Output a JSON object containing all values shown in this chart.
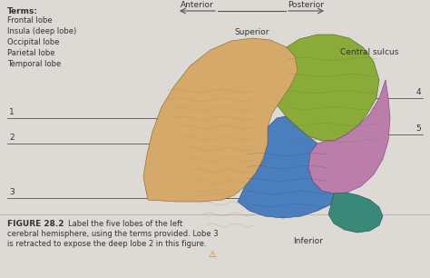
{
  "figsize": [
    4.74,
    3.06
  ],
  "dpi": 100,
  "bg_color": "#ddd9d4",
  "text_color": "#333333",
  "line_color": "#555555",
  "terms_title": "Terms:",
  "terms_list": [
    "Frontal lobe",
    "Insula (deep lobe)",
    "Occipital lobe",
    "Parietal lobe",
    "Temporal lobe"
  ],
  "anterior_label": "Anterior",
  "posterior_label": "Posterior",
  "superior_label": "Superior",
  "inferior_label": "Inferior",
  "central_sulcus_label": "Central sulcus",
  "figure_label": "FIGURE 28.2",
  "caption": "Label the five lobes of the left\ncerebral hemisphere, using the terms provided. Lobe 3\nis retracted to expose the deep lobe 2 in this figure.",
  "font_size_terms_title": 6.5,
  "font_size_terms": 6.0,
  "font_size_labels": 6.5,
  "font_size_numbers": 6.5,
  "font_size_caption_bold": 6.5,
  "font_size_caption": 6.0,
  "frontal_color": "#d4a96a",
  "parietal_color": "#8aaa3a",
  "occipital_color": "#bb7eaa",
  "temporal_color": "#4a7ebc",
  "insula_color": "#8060a0",
  "cerebellum_color": "#3a8878",
  "brain_edge_color": "#7a6040",
  "sep_line_color": "#aaaaaa"
}
